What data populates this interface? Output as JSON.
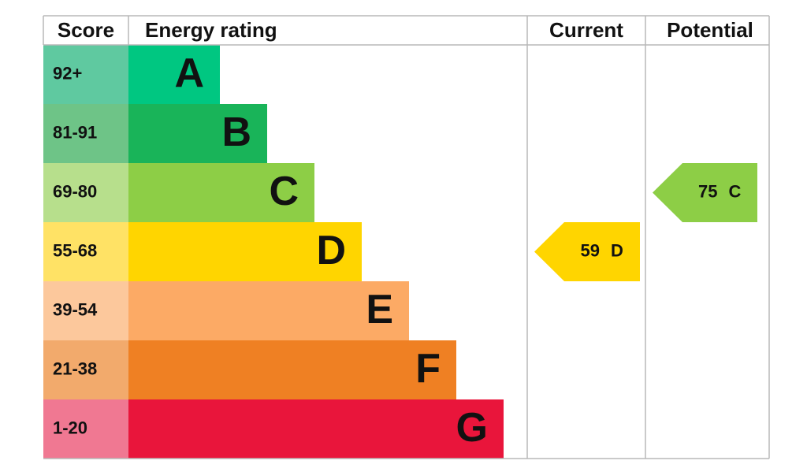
{
  "headers": {
    "score": "Score",
    "rating": "Energy rating",
    "current": "Current",
    "potential": "Potential"
  },
  "bands": [
    {
      "score": "92+",
      "letter": "A",
      "color": "#00c781",
      "score_color": "#5fc9a0"
    },
    {
      "score": "81-91",
      "letter": "B",
      "color": "#19b459",
      "score_color": "#6ec487"
    },
    {
      "score": "69-80",
      "letter": "C",
      "color": "#8dce46",
      "score_color": "#b7df8c"
    },
    {
      "score": "55-68",
      "letter": "D",
      "color": "#ffd500",
      "score_color": "#ffe265"
    },
    {
      "score": "39-54",
      "letter": "E",
      "color": "#fcaa65",
      "score_color": "#fcc89c"
    },
    {
      "score": "21-38",
      "letter": "F",
      "color": "#ef8023",
      "score_color": "#f2aa6c"
    },
    {
      "score": "1-20",
      "letter": "G",
      "color": "#e9153b",
      "score_color": "#f07892"
    }
  ],
  "current": {
    "value": 59,
    "letter": "D"
  },
  "potential": {
    "value": 75,
    "letter": "C"
  }
}
